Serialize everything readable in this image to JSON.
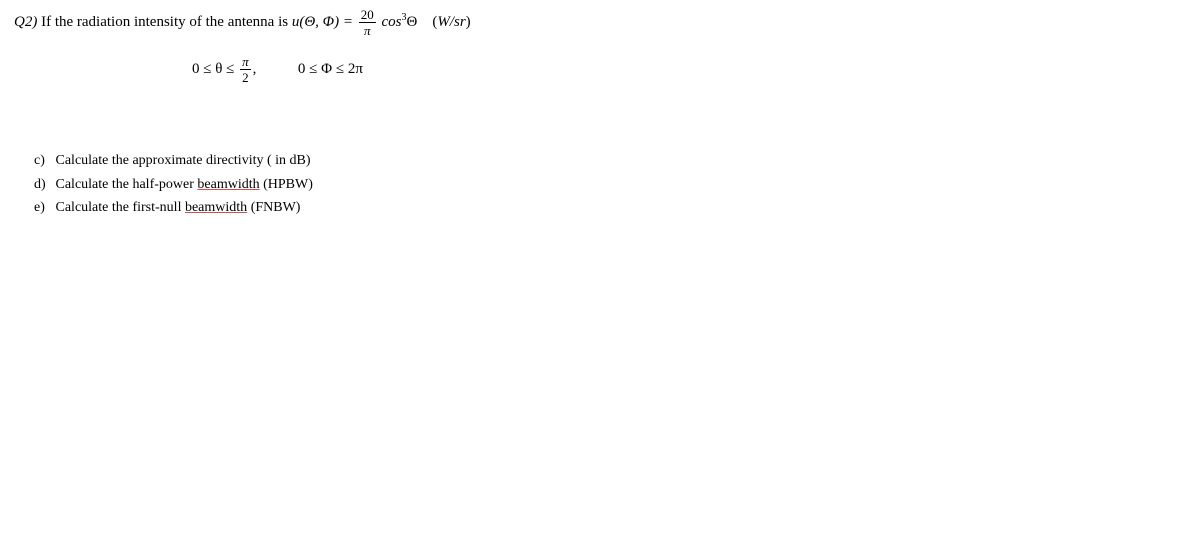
{
  "q": {
    "label": "Q2)",
    "lead": "If the radiation intensity of the antenna is ",
    "u_func": "u(Θ, Φ) =",
    "frac_num": "20",
    "frac_den": "π",
    "cos_base": "cos",
    "cos_exp": "3",
    "cos_arg": "Θ",
    "units_open": "(",
    "units_text": "W/sr",
    "units_close": ")"
  },
  "bounds": {
    "theta_lhs": "0 ≤ θ ≤",
    "theta_frac_num": "π",
    "theta_frac_den": "2",
    "comma": ",",
    "phi": "0 ≤ Φ ≤ 2π"
  },
  "items": {
    "c": {
      "marker": "c)",
      "text_pre": "Calculate the approximate directivity ( in dB)"
    },
    "d": {
      "marker": "d)",
      "text_pre": "Calculate the half-power ",
      "ul": "beamwidth",
      "text_post": " (HPBW)"
    },
    "e": {
      "marker": "e)",
      "text_pre": "Calculate the first-null ",
      "ul": "beamwidth",
      "text_post": " (FNBW)"
    }
  }
}
